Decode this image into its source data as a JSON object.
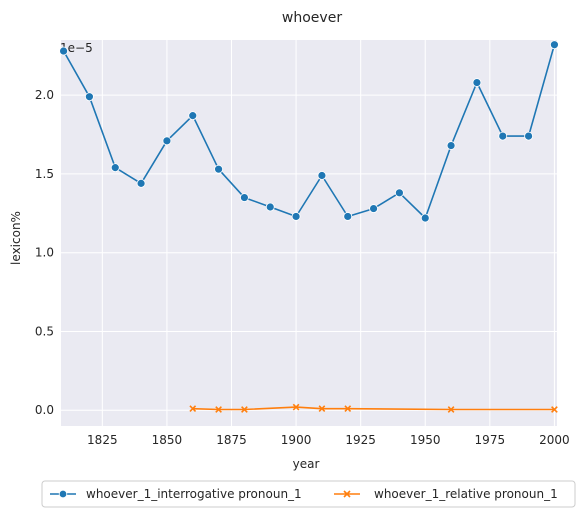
{
  "chart_data": {
    "type": "line",
    "title": "whoever",
    "xlabel": "year",
    "ylabel": "lexicon%",
    "y_offset_label": "1e−5",
    "xlim": [
      1809,
      2001
    ],
    "ylim": [
      -0.1,
      2.35
    ],
    "x_ticks": [
      1825,
      1850,
      1875,
      1900,
      1925,
      1950,
      1975,
      2000
    ],
    "y_ticks": [
      0.0,
      0.5,
      1.0,
      1.5,
      2.0
    ],
    "grid": true,
    "legend_position": "bottom-center",
    "series": [
      {
        "name": "whoever_1_interrogative pronoun_1",
        "color": "#1f77b4",
        "marker": "circle",
        "x": [
          1810,
          1820,
          1830,
          1840,
          1850,
          1860,
          1870,
          1880,
          1890,
          1900,
          1910,
          1920,
          1930,
          1940,
          1950,
          1960,
          1970,
          1980,
          1990,
          2000
        ],
        "y": [
          2.28,
          1.99,
          1.54,
          1.44,
          1.71,
          1.87,
          1.53,
          1.35,
          1.29,
          1.23,
          1.49,
          1.23,
          1.28,
          1.38,
          1.22,
          1.68,
          2.08,
          1.74,
          1.74,
          2.32
        ]
      },
      {
        "name": "whoever_1_relative pronoun_1",
        "color": "#ff7f0e",
        "marker": "x",
        "x": [
          1860,
          1870,
          1880,
          1900,
          1910,
          1920,
          1960,
          2000
        ],
        "y": [
          0.01,
          0.005,
          0.005,
          0.02,
          0.01,
          0.01,
          0.005,
          0.005
        ]
      }
    ]
  }
}
